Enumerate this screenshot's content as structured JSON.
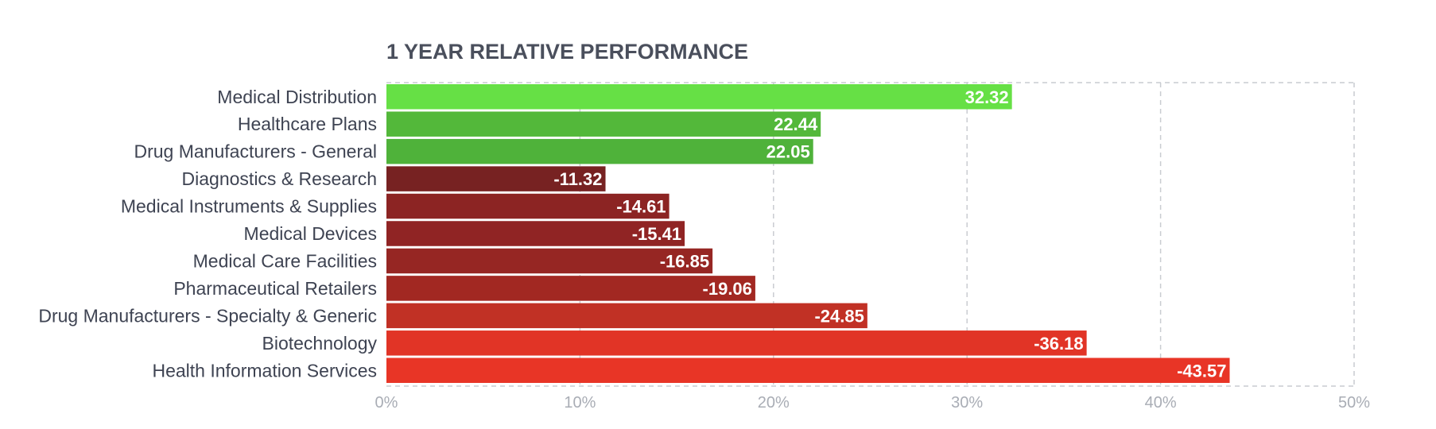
{
  "chart_data": {
    "type": "bar",
    "orientation": "horizontal",
    "title": "1 YEAR RELATIVE PERFORMANCE",
    "categories": [
      "Medical Distribution",
      "Healthcare Plans",
      "Drug Manufacturers - General",
      "Diagnostics & Research",
      "Medical Instruments & Supplies",
      "Medical Devices",
      "Medical Care Facilities",
      "Pharmaceutical Retailers",
      "Drug Manufacturers - Specialty & Generic",
      "Biotechnology",
      "Health Information Services"
    ],
    "values": [
      32.32,
      22.44,
      22.05,
      -11.32,
      -14.61,
      -15.41,
      -16.85,
      -19.06,
      -24.85,
      -36.18,
      -43.57
    ],
    "value_labels": [
      "32.32",
      "22.44",
      "22.05",
      "-11.32",
      "-14.61",
      "-15.41",
      "-16.85",
      "-19.06",
      "-24.85",
      "-36.18",
      "-43.57"
    ],
    "bar_colors": [
      "#66e045",
      "#53b83a",
      "#4fb23a",
      "#772222",
      "#8c2423",
      "#902424",
      "#962623",
      "#a22822",
      "#c13125",
      "#e13426",
      "#e83526"
    ],
    "xlim": [
      0,
      50
    ],
    "xticks": [
      0,
      10,
      20,
      30,
      40,
      50
    ],
    "xtick_labels": [
      "0%",
      "10%",
      "20%",
      "30%",
      "40%",
      "50%"
    ],
    "bar_length": "absolute value",
    "grid": "vertical dashed",
    "legend": "none"
  }
}
